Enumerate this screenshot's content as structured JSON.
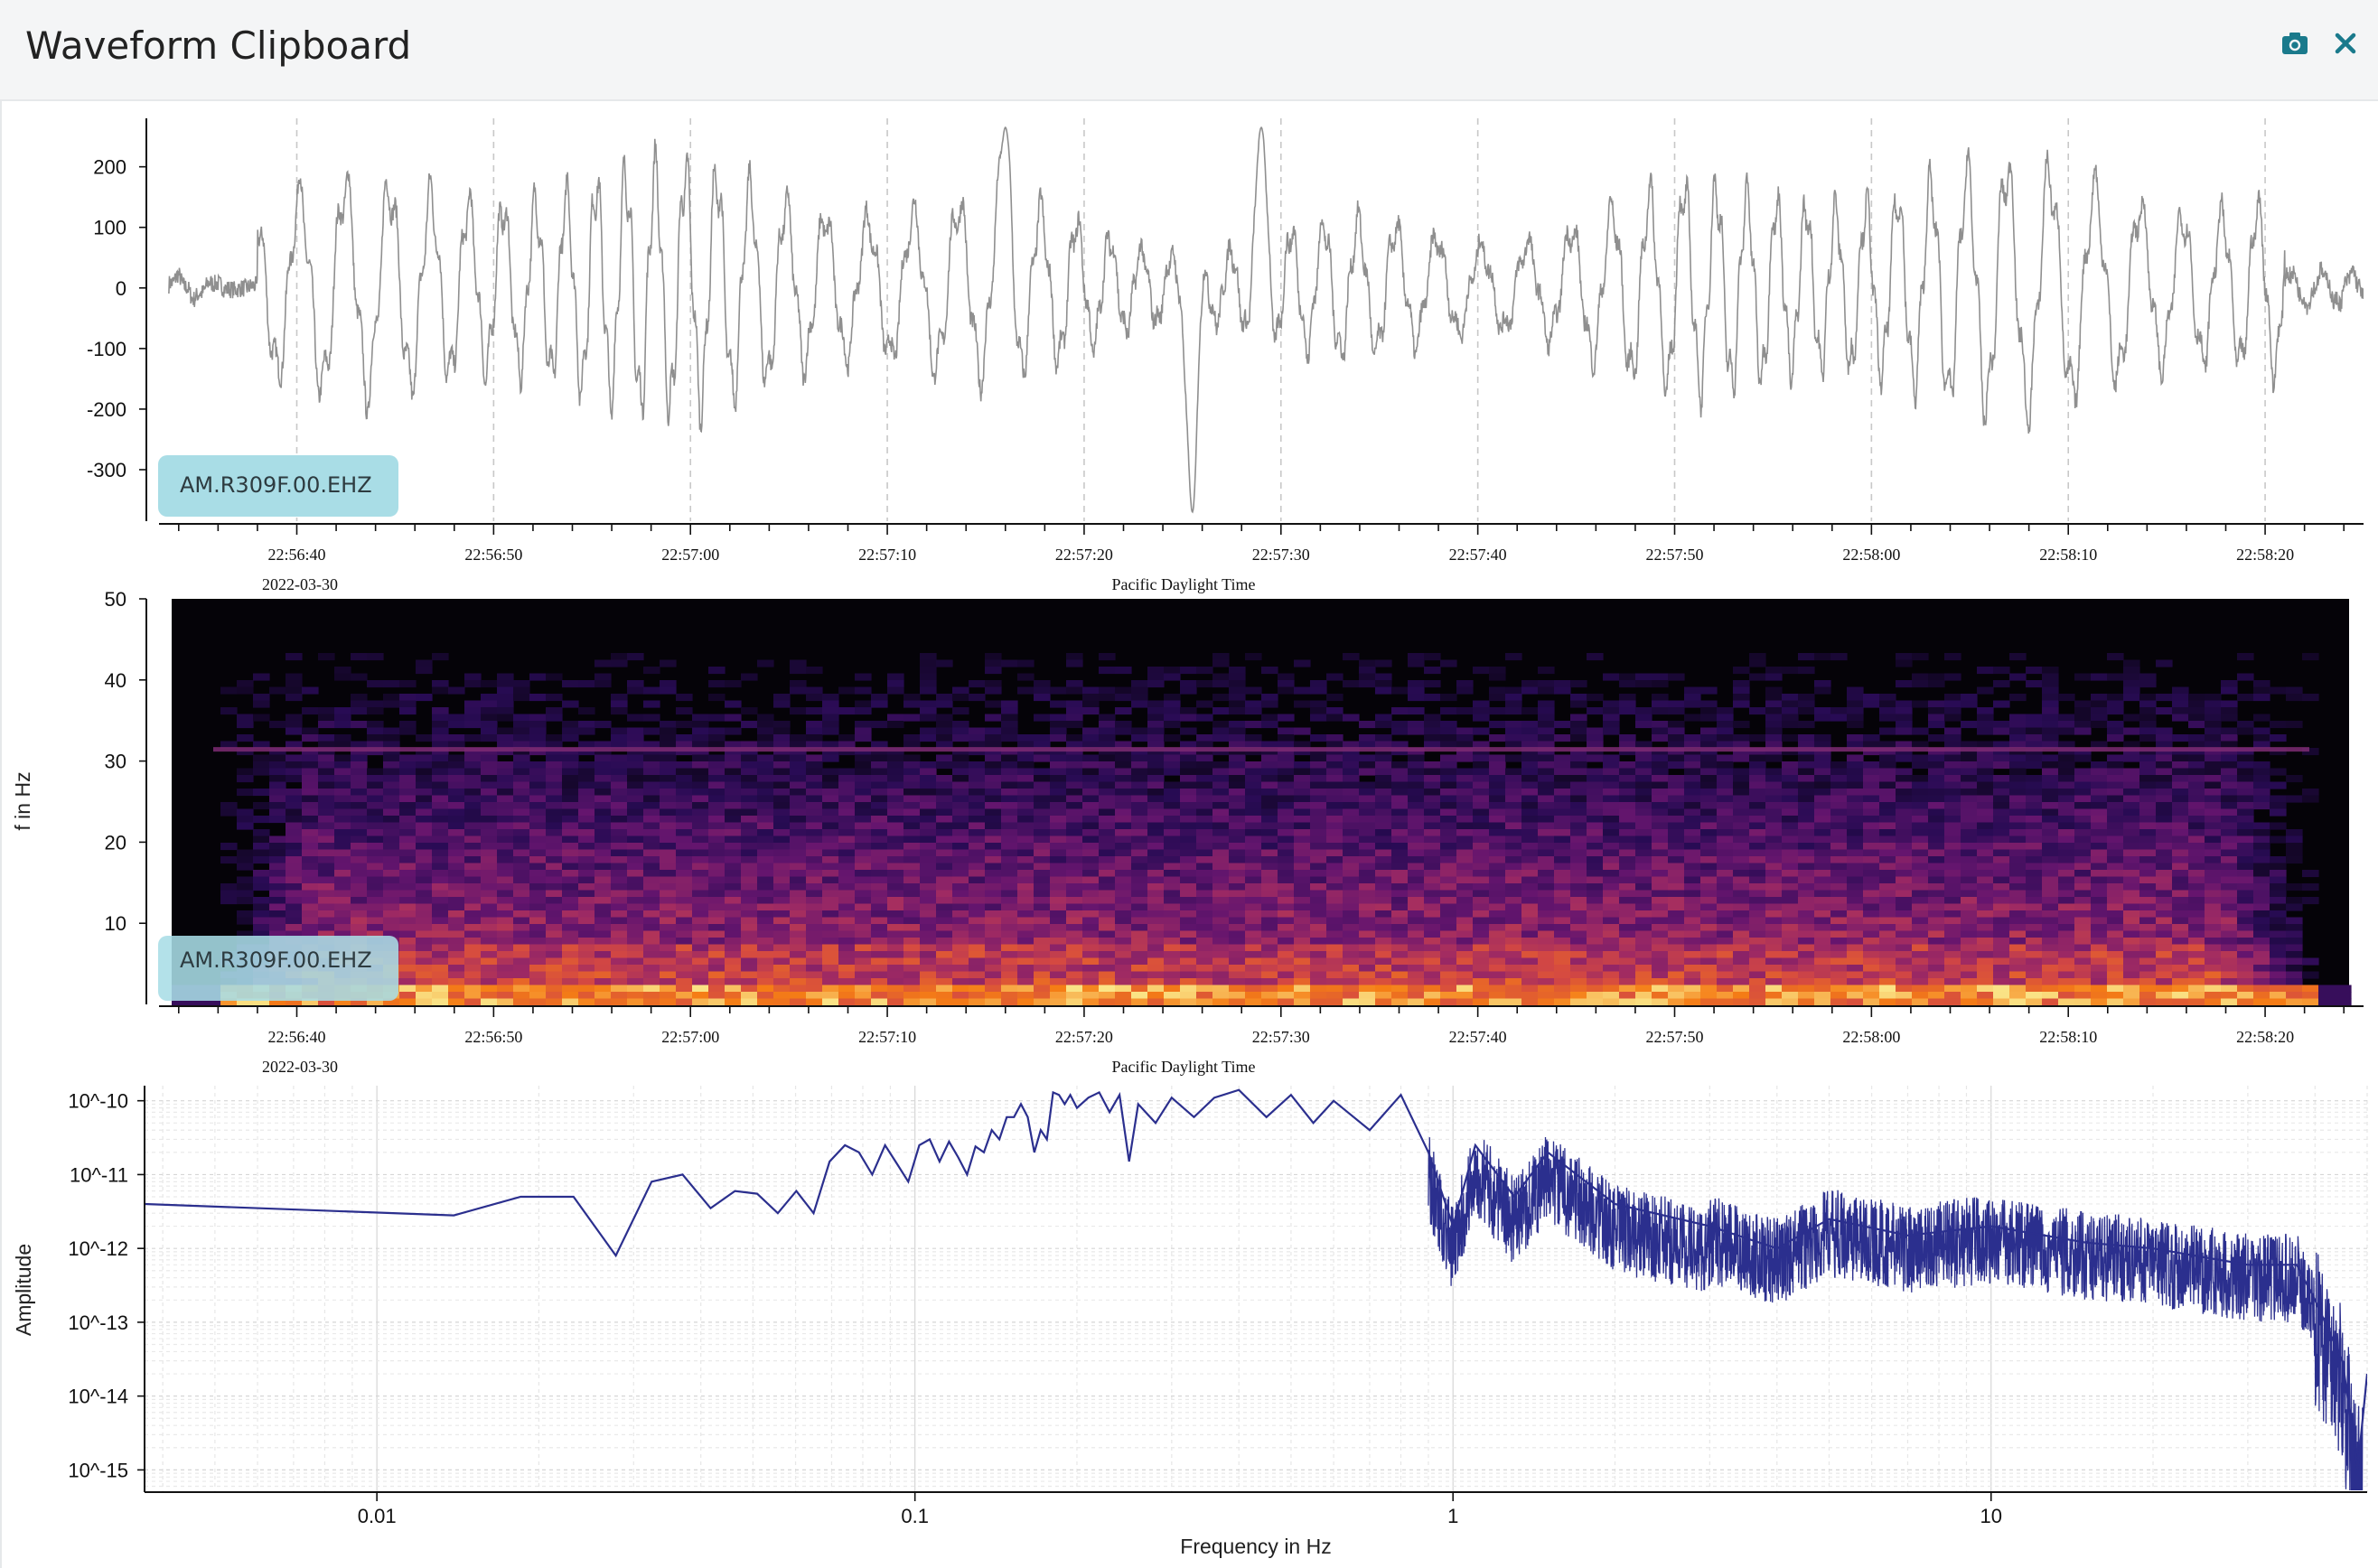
{
  "window": {
    "title": "Waveform Clipboard",
    "camera_icon": "camera-icon",
    "close_icon": "close-icon",
    "accent": "#1a7a8c"
  },
  "chart_data": [
    {
      "type": "line",
      "name": "seismogram",
      "channel_label": "AM.R309F.00.EHZ",
      "yticks": [
        200,
        100,
        0,
        -100,
        -200,
        -300
      ],
      "ylim": [
        -385,
        280
      ],
      "xticks": [
        "22:56:40",
        "22:56:50",
        "22:57:00",
        "22:57:10",
        "22:57:20",
        "22:57:30",
        "22:57:40",
        "22:57:50",
        "22:58:00",
        "22:58:10",
        "22:58:20"
      ],
      "date_label": "2022-03-30",
      "xlabel": "Pacific Daylight Time",
      "xlim": [
        "22:56:33",
        "22:58:25"
      ],
      "dashed_gridlines_at_ticks": true,
      "line_color": "#8f8f8f",
      "peaks_described": [
        {
          "time": "22:57:16",
          "value": 265
        },
        {
          "time": "22:57:25.5",
          "value": -370
        },
        {
          "time": "22:57:29",
          "value": 265
        }
      ]
    },
    {
      "type": "heatmap",
      "name": "spectrogram",
      "channel_label": "AM.R309F.00.EHZ",
      "ylabel": "f in Hz",
      "yticks": [
        50,
        40,
        30,
        20,
        10
      ],
      "ylim": [
        0,
        50
      ],
      "xticks": [
        "22:56:40",
        "22:56:50",
        "22:57:00",
        "22:57:10",
        "22:57:20",
        "22:57:30",
        "22:57:40",
        "22:57:50",
        "22:58:00",
        "22:58:10",
        "22:58:20"
      ],
      "date_label": "2022-03-30",
      "xlabel": "Pacific Daylight Time",
      "colormap": "inferno",
      "narrowband_line_hz": 31.5
    },
    {
      "type": "line",
      "name": "amplitude-spectrum",
      "xlabel": "Frequency in Hz",
      "ylabel": "Amplitude",
      "xscale": "log",
      "yscale": "log",
      "xticks": [
        "0.01",
        "0.1",
        "1",
        "10"
      ],
      "yticks": [
        "10^-10",
        "10^-11",
        "10^-12",
        "10^-13",
        "10^-14",
        "10^-15"
      ],
      "xlim": [
        0.0037,
        50
      ],
      "ylim": [
        5e-16,
        1.6e-10
      ],
      "grid": true,
      "line_color": "#2b2f8e",
      "points": [
        [
          0.0037,
          4e-12
        ],
        [
          0.0139,
          2.8e-12
        ],
        [
          0.0185,
          5e-12
        ],
        [
          0.0232,
          5e-12
        ],
        [
          0.0278,
          8e-13
        ],
        [
          0.0324,
          8e-12
        ],
        [
          0.037,
          1e-11
        ],
        [
          0.0417,
          3.5e-12
        ],
        [
          0.0463,
          6e-12
        ],
        [
          0.0509,
          5.5e-12
        ],
        [
          0.0556,
          3e-12
        ],
        [
          0.0602,
          6e-12
        ],
        [
          0.0648,
          3e-12
        ],
        [
          0.0694,
          1.5e-11
        ],
        [
          0.0741,
          2.5e-11
        ],
        [
          0.0787,
          2e-11
        ],
        [
          0.0833,
          1e-11
        ],
        [
          0.088,
          2.5e-11
        ],
        [
          0.0926,
          1.4e-11
        ],
        [
          0.0972,
          8e-12
        ],
        [
          0.1019,
          2.5e-11
        ],
        [
          0.1065,
          3e-11
        ],
        [
          0.1111,
          1.5e-11
        ],
        [
          0.1157,
          2.8e-11
        ],
        [
          0.1204,
          1.7e-11
        ],
        [
          0.125,
          1e-11
        ],
        [
          0.1296,
          2.4e-11
        ],
        [
          0.1343,
          2e-11
        ],
        [
          0.1389,
          4e-11
        ],
        [
          0.1435,
          3e-11
        ],
        [
          0.1481,
          6e-11
        ],
        [
          0.1528,
          6e-11
        ],
        [
          0.1574,
          9e-11
        ],
        [
          0.162,
          6e-11
        ],
        [
          0.1667,
          2e-11
        ],
        [
          0.1713,
          4e-11
        ],
        [
          0.1759,
          3e-11
        ],
        [
          0.1806,
          1.3e-10
        ],
        [
          0.1852,
          1.2e-10
        ],
        [
          0.1898,
          9e-11
        ],
        [
          0.1944,
          1.2e-10
        ],
        [
          0.2,
          8e-11
        ],
        [
          0.21,
          1.1e-10
        ],
        [
          0.22,
          1.3e-10
        ],
        [
          0.23,
          7e-11
        ],
        [
          0.24,
          1.2e-10
        ],
        [
          0.25,
          1.5e-11
        ],
        [
          0.26,
          9e-11
        ],
        [
          0.28,
          5e-11
        ],
        [
          0.3,
          1.1e-10
        ],
        [
          0.33,
          6e-11
        ],
        [
          0.36,
          1.1e-10
        ],
        [
          0.4,
          1.4e-10
        ],
        [
          0.45,
          6e-11
        ],
        [
          0.5,
          1.2e-10
        ],
        [
          0.55,
          5e-11
        ],
        [
          0.6,
          1e-10
        ],
        [
          0.7,
          4e-11
        ],
        [
          0.8,
          1.2e-10
        ],
        [
          0.9,
          2e-11
        ],
        [
          1.0,
          2e-12
        ],
        [
          1.1,
          2.5e-11
        ],
        [
          1.3,
          5e-12
        ],
        [
          1.5,
          2e-11
        ],
        [
          2.0,
          4e-12
        ],
        [
          3.0,
          2e-12
        ],
        [
          4.0,
          1e-12
        ],
        [
          5.0,
          2.5e-12
        ],
        [
          7.0,
          1.5e-12
        ],
        [
          10.0,
          2e-12
        ],
        [
          15.0,
          1.2e-12
        ],
        [
          20.0,
          1e-12
        ],
        [
          30.0,
          6e-13
        ],
        [
          37.0,
          6e-13
        ],
        [
          40.0,
          2e-13
        ],
        [
          45.0,
          3e-14
        ],
        [
          48.0,
          1e-15
        ],
        [
          50.0,
          2e-14
        ]
      ]
    }
  ]
}
